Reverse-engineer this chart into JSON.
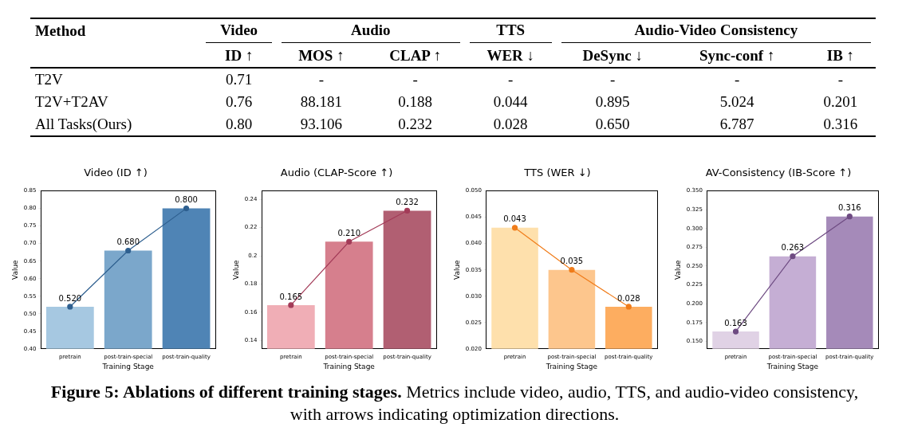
{
  "chart_data": [
    {
      "type": "other",
      "annotations": [
        "Method",
        "Video",
        "Audio",
        "TTS",
        "Audio-Video Consistency"
      ],
      "categories": [
        "ID ↑",
        "MOS ↑",
        "CLAP ↑",
        "WER ↓",
        "DeSync ↓",
        "Sync-conf ↑",
        "IB ↑"
      ],
      "y_categories": [
        "T2V",
        "T2V+T2AV",
        "All Tasks(Ours)"
      ],
      "cell_labels": [
        [
          "0.71",
          "-",
          "-",
          "-",
          "-",
          "-",
          "-"
        ],
        [
          "0.76",
          "88.181",
          "0.188",
          "0.044",
          "0.895",
          "5.024",
          "0.201"
        ],
        [
          "0.80",
          "93.106",
          "0.232",
          "0.028",
          "0.650",
          "6.787",
          "0.316"
        ]
      ]
    },
    {
      "type": "bar",
      "title": "Video (ID ↑)",
      "xlabel": "Training Stage",
      "ylabel": "Value",
      "categories": [
        "pretrain",
        "post-train-special",
        "post-train-quality"
      ],
      "marker": "circle",
      "ylim": [
        0.4,
        0.85
      ],
      "yticks": [
        {
          "value": 0.4,
          "label": "0.40"
        },
        {
          "value": 0.45,
          "label": "0.45"
        },
        {
          "value": 0.5,
          "label": "0.50"
        },
        {
          "value": 0.55,
          "label": "0.55"
        },
        {
          "value": 0.6,
          "label": "0.60"
        },
        {
          "value": 0.65,
          "label": "0.65"
        },
        {
          "value": 0.7,
          "label": "0.70"
        },
        {
          "value": 0.75,
          "label": "0.75"
        },
        {
          "value": 0.8,
          "label": "0.80"
        },
        {
          "value": 0.85,
          "label": "0.85"
        }
      ],
      "series": [
        {
          "type": "bar",
          "colors": [
            "#a6c8e1",
            "#7ba7cb",
            "#4f84b5"
          ],
          "values": [
            0.52,
            0.68,
            0.8
          ]
        },
        {
          "type": "line",
          "color": "#2e5f8f",
          "values": [
            0.52,
            0.68,
            0.8
          ],
          "value_labels": [
            "0.520",
            "0.680",
            "0.800"
          ]
        }
      ]
    },
    {
      "type": "bar",
      "title": "Audio (CLAP-Score ↑)",
      "xlabel": "Training Stage",
      "ylabel": "Value",
      "categories": [
        "pretrain",
        "post-train-special",
        "post-train-quality"
      ],
      "marker": "circle",
      "ylim": [
        0.134,
        0.246
      ],
      "yticks": [
        0.14,
        0.16,
        0.18,
        0.2,
        0.22,
        0.24
      ],
      "series": [
        {
          "type": "bar",
          "colors": [
            "#f0aeb6",
            "#d67f8d",
            "#b15f72"
          ],
          "values": [
            0.165,
            0.21,
            0.232
          ]
        },
        {
          "type": "line",
          "color": "#a33b58",
          "values": [
            0.165,
            0.21,
            0.232
          ],
          "value_labels": [
            "0.165",
            "0.210",
            "0.232"
          ]
        }
      ]
    },
    {
      "type": "bar",
      "title": "TTS (WER ↓)",
      "xlabel": "Training Stage",
      "ylabel": "Value",
      "categories": [
        "pretrain",
        "post-train-special",
        "post-train-quality"
      ],
      "marker": "circle",
      "ylim": [
        0.02,
        0.05
      ],
      "yticks": [
        {
          "value": 0.02,
          "label": "0.020"
        },
        {
          "value": 0.025,
          "label": "0.025"
        },
        {
          "value": 0.03,
          "label": "0.030"
        },
        {
          "value": 0.035,
          "label": "0.035"
        },
        {
          "value": 0.04,
          "label": "0.040"
        },
        {
          "value": 0.045,
          "label": "0.045"
        },
        {
          "value": 0.05,
          "label": "0.050"
        }
      ],
      "series": [
        {
          "type": "bar",
          "colors": [
            "#fee0ac",
            "#fdc68d",
            "#fdad60"
          ],
          "values": [
            0.043,
            0.035,
            0.028
          ]
        },
        {
          "type": "line",
          "color": "#f07c1a",
          "values": [
            0.043,
            0.035,
            0.028
          ],
          "value_labels": [
            "0.043",
            "0.035",
            "0.028"
          ]
        }
      ]
    },
    {
      "type": "bar",
      "title": "AV-Consistency (IB-Score ↑)",
      "xlabel": "Training Stage",
      "ylabel": "Value",
      "categories": [
        "pretrain",
        "post-train-special",
        "post-train-quality"
      ],
      "marker": "circle",
      "ylim": [
        0.14,
        0.35
      ],
      "yticks": [
        {
          "value": 0.15,
          "label": "0.150"
        },
        {
          "value": 0.175,
          "label": "0.175"
        },
        {
          "value": 0.2,
          "label": "0.200"
        },
        {
          "value": 0.225,
          "label": "0.225"
        },
        {
          "value": 0.25,
          "label": "0.250"
        },
        {
          "value": 0.275,
          "label": "0.275"
        },
        {
          "value": 0.3,
          "label": "0.300"
        },
        {
          "value": 0.325,
          "label": "0.325"
        },
        {
          "value": 0.35,
          "label": "0.350"
        }
      ],
      "series": [
        {
          "type": "bar",
          "colors": [
            "#e0d2e5",
            "#c5aed4",
            "#a58ab9"
          ],
          "values": [
            0.163,
            0.263,
            0.316
          ]
        },
        {
          "type": "line",
          "color": "#6e4b82",
          "values": [
            0.163,
            0.263,
            0.316
          ],
          "value_labels": [
            "0.163",
            "0.263",
            "0.316"
          ]
        }
      ]
    },
    {
      "type": "other",
      "title": "Figure 5: Ablations of different training stages.",
      "annotations": [
        "Metrics include video, audio, TTS, and audio-video consistency, with arrows indicating optimization directions."
      ]
    }
  ]
}
